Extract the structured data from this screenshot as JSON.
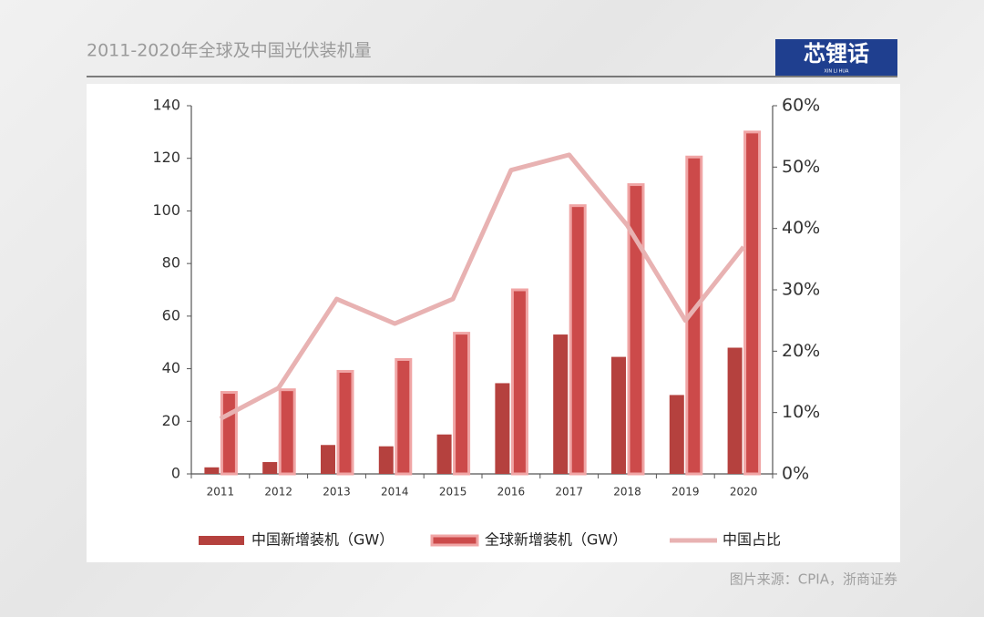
{
  "chart_data": {
    "type": "bar-line",
    "title": "2011-2020年全球及中国光伏装机量",
    "categories": [
      "2011",
      "2012",
      "2013",
      "2014",
      "2015",
      "2016",
      "2017",
      "2018",
      "2019",
      "2020"
    ],
    "series": [
      {
        "name": "中国新增装机（GW）",
        "color": "#b5413e",
        "type": "bar",
        "values": [
          2.5,
          4.5,
          11,
          10.5,
          15,
          34.5,
          53,
          44.5,
          30,
          48
        ]
      },
      {
        "name": "全球新增装机（GW）",
        "color": "#cc4a4a",
        "type": "bar",
        "values": [
          31,
          32,
          39,
          43.5,
          53.5,
          70,
          102,
          110,
          120.5,
          130
        ]
      },
      {
        "name": "中国占比",
        "color": "#e8b2b2",
        "type": "line",
        "axis": "y2",
        "values": [
          9,
          14,
          28.5,
          24.5,
          28.5,
          49.5,
          52,
          40.5,
          25,
          37
        ]
      }
    ],
    "ylim": [
      0,
      140
    ],
    "yticks": [
      0,
      20,
      40,
      60,
      80,
      100,
      120,
      140
    ],
    "y2lim": [
      0,
      60
    ],
    "y2ticks": [
      {
        "value": 0,
        "label": "0%"
      },
      {
        "value": 10,
        "label": "10%"
      },
      {
        "value": 20,
        "label": "20%"
      },
      {
        "value": 30,
        "label": "30%"
      },
      {
        "value": 40,
        "label": "40%"
      },
      {
        "value": 50,
        "label": "50%"
      },
      {
        "value": 60,
        "label": "60%"
      }
    ],
    "legend": "bottom"
  },
  "logo": {
    "name": "芯锂话",
    "subtitle": "XIN LI HUA"
  },
  "source": "图片来源：CPIA，浙商证券"
}
